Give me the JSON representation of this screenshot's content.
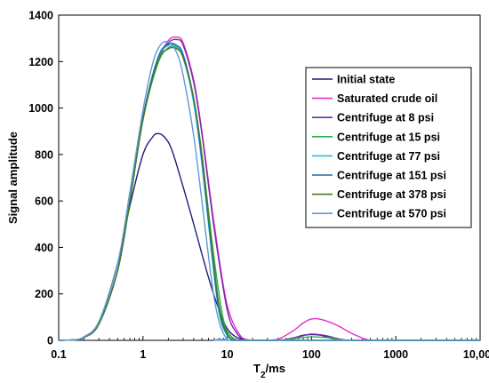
{
  "chart_data": {
    "type": "line",
    "xlabel": "T2/ms",
    "ylabel": "Signal amplitude",
    "xscale": "log",
    "xlim": [
      0.1,
      10000
    ],
    "ylim": [
      0,
      1400
    ],
    "xticks": [
      0.1,
      1,
      10,
      100,
      1000,
      10000
    ],
    "xtick_labels": [
      "0.1",
      "1",
      "10",
      "100",
      "1000",
      "10,000"
    ],
    "yticks": [
      0,
      200,
      400,
      600,
      800,
      1000,
      1200,
      1400
    ],
    "grid": false,
    "legend_position": "right",
    "series": [
      {
        "name": "Initial state",
        "color": "#1f1f7a",
        "x": [
          0.1,
          0.15,
          0.2,
          0.3,
          0.5,
          0.7,
          1.0,
          1.3,
          1.5,
          1.8,
          2.2,
          3.0,
          4.0,
          6.0,
          8.0,
          10.0,
          13.0,
          17.0,
          25.0,
          40,
          60,
          80,
          100,
          130,
          160,
          200,
          300,
          1000,
          10000
        ],
        "y": [
          0,
          2,
          15,
          80,
          330,
          580,
          800,
          875,
          890,
          875,
          820,
          660,
          500,
          270,
          130,
          50,
          12,
          2,
          0,
          0,
          10,
          22,
          25,
          22,
          12,
          3,
          0,
          0,
          0
        ]
      },
      {
        "name": "Saturated crude oil",
        "color": "#e62ad1",
        "x": [
          0.1,
          0.15,
          0.2,
          0.3,
          0.5,
          0.7,
          1.0,
          1.5,
          2.0,
          2.5,
          3.0,
          4.0,
          5.0,
          7.0,
          10.0,
          15.0,
          20.0,
          30.0,
          40.0,
          60.0,
          80.0,
          100.0,
          130.0,
          200.0,
          300.0,
          500.0,
          1000,
          10000
        ],
        "y": [
          0,
          2,
          12,
          70,
          300,
          600,
          950,
          1200,
          1290,
          1305,
          1280,
          1120,
          900,
          500,
          150,
          10,
          0,
          0,
          5,
          40,
          75,
          92,
          90,
          65,
          30,
          0,
          0,
          0
        ]
      },
      {
        "name": "Centrifuge at 8 psi",
        "color": "#7a2aa8",
        "x": [
          0.1,
          0.15,
          0.2,
          0.3,
          0.5,
          0.7,
          1.0,
          1.5,
          2.0,
          2.5,
          3.0,
          4.0,
          5.0,
          7.0,
          10.0,
          13.0,
          16.0,
          20.0,
          30.0,
          50.0,
          70.0,
          100.0,
          150.0,
          200.0,
          300.0,
          1000,
          10000
        ],
        "y": [
          0,
          2,
          12,
          70,
          300,
          600,
          950,
          1200,
          1280,
          1295,
          1270,
          1110,
          890,
          480,
          130,
          30,
          5,
          0,
          0,
          3,
          15,
          27,
          20,
          8,
          0,
          0,
          0
        ]
      },
      {
        "name": "Centrifuge at 15 psi",
        "color": "#2fb04e",
        "x": [
          0.1,
          0.15,
          0.2,
          0.3,
          0.5,
          0.7,
          1.0,
          1.5,
          2.0,
          2.5,
          3.0,
          4.0,
          5.0,
          7.0,
          9.0,
          11.0,
          14.0,
          20.0,
          50.0,
          70.0,
          100.0,
          150.0,
          200.0,
          300.0,
          1000,
          10000
        ],
        "y": [
          0,
          2,
          12,
          70,
          300,
          600,
          950,
          1190,
          1260,
          1260,
          1220,
          1040,
          800,
          350,
          90,
          20,
          0,
          0,
          3,
          10,
          15,
          12,
          5,
          0,
          0,
          0
        ]
      },
      {
        "name": "Centrifuge at 77 psi",
        "color": "#2dbfd8",
        "x": [
          0.1,
          0.15,
          0.2,
          0.3,
          0.5,
          0.7,
          1.0,
          1.5,
          2.0,
          2.5,
          3.0,
          4.0,
          5.0,
          6.5,
          8.0,
          10.0,
          13.0,
          20.0,
          10000
        ],
        "y": [
          0,
          2,
          12,
          70,
          300,
          600,
          960,
          1210,
          1270,
          1265,
          1220,
          1020,
          760,
          380,
          120,
          20,
          0,
          0,
          0
        ]
      },
      {
        "name": "Centrifuge at 151 psi",
        "color": "#1f6ea8",
        "x": [
          0.1,
          0.15,
          0.2,
          0.3,
          0.5,
          0.7,
          1.0,
          1.5,
          2.0,
          2.5,
          3.0,
          4.0,
          5.0,
          6.5,
          8.0,
          10.0,
          13.0,
          20.0,
          10000
        ],
        "y": [
          0,
          2,
          12,
          70,
          300,
          600,
          960,
          1215,
          1275,
          1270,
          1230,
          1040,
          780,
          400,
          130,
          25,
          0,
          0,
          0
        ]
      },
      {
        "name": "Centrifuge at 378 psi",
        "color": "#4a7a22",
        "x": [
          0.1,
          0.15,
          0.2,
          0.3,
          0.5,
          0.7,
          1.0,
          1.5,
          2.0,
          2.5,
          3.0,
          4.0,
          5.0,
          6.5,
          8.0,
          10.0,
          13.0,
          20.0,
          10000
        ],
        "y": [
          0,
          2,
          12,
          70,
          300,
          600,
          950,
          1200,
          1255,
          1255,
          1215,
          1040,
          800,
          420,
          150,
          30,
          0,
          0,
          0
        ]
      },
      {
        "name": "Centrifuge at 570 psi",
        "color": "#5b9bd5",
        "x": [
          0.1,
          0.15,
          0.2,
          0.3,
          0.5,
          0.7,
          1.0,
          1.3,
          1.6,
          2.0,
          2.5,
          3.0,
          4.0,
          5.0,
          6.0,
          7.0,
          8.0,
          9.0,
          10.0,
          12.0,
          10000
        ],
        "y": [
          0,
          2,
          14,
          80,
          330,
          640,
          990,
          1190,
          1270,
          1285,
          1240,
          1140,
          880,
          600,
          360,
          180,
          80,
          30,
          8,
          0,
          0
        ]
      }
    ]
  }
}
